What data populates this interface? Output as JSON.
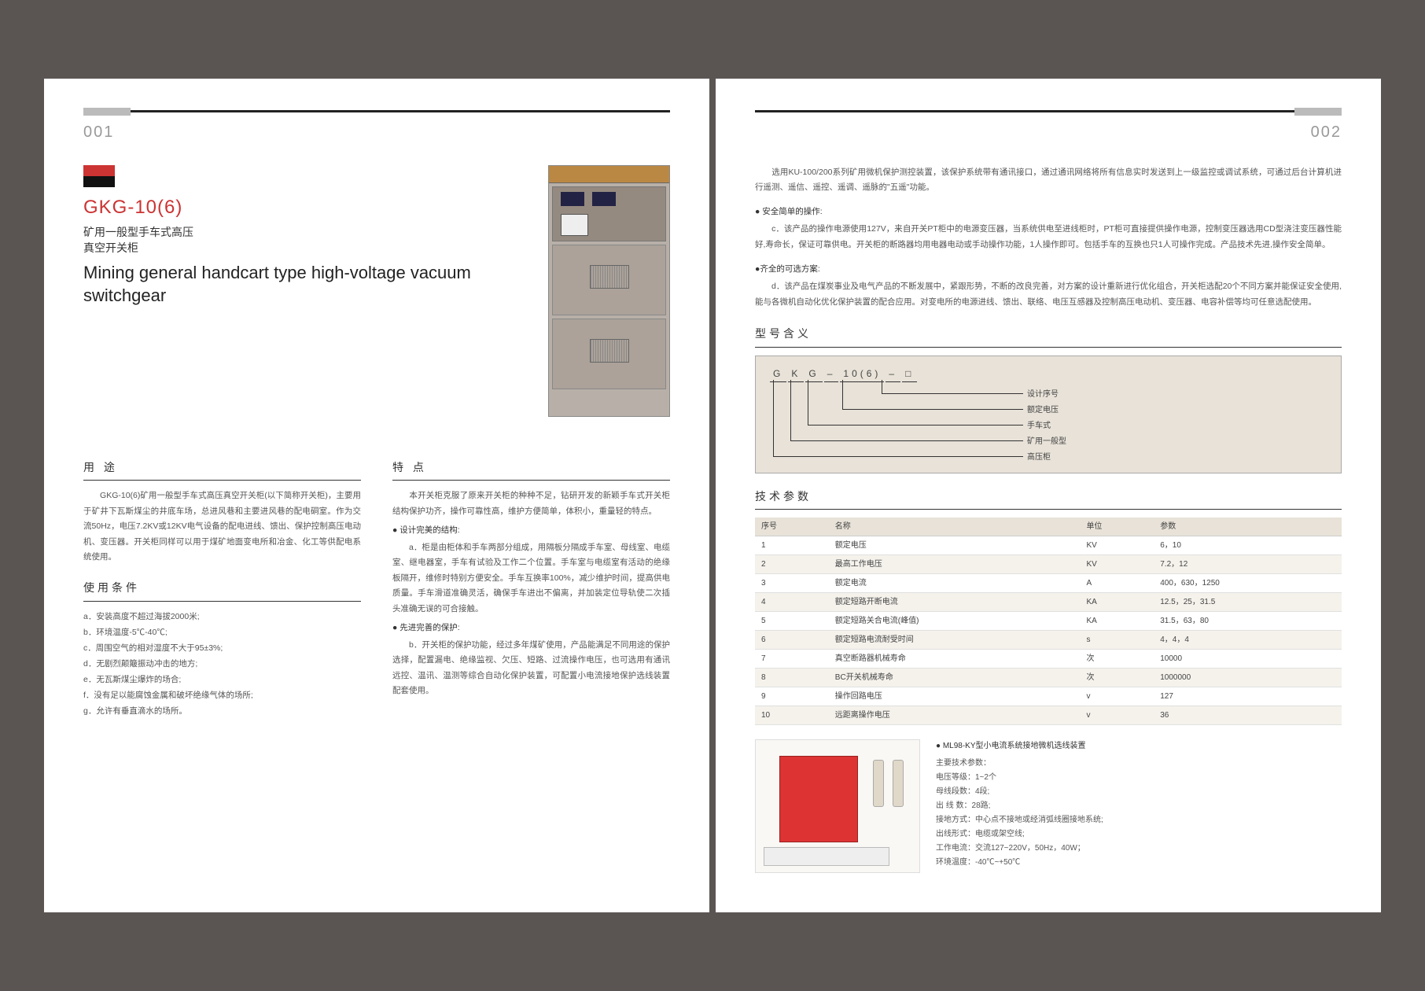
{
  "leftPage": {
    "pageNum": "001",
    "model": "GKG-10(6)",
    "modelSub": "矿用一般型手车式高压\n真空开关柜",
    "modelEn": "Mining general handcart type high-voltage vacuum switchgear",
    "usage": {
      "heading": "用 途",
      "text": "　　GKG-10(6)矿用一般型手车式高压真空开关柜(以下简称开关柜)，主要用于矿井下瓦斯煤尘的井底车场，总进风巷和主要进风巷的配电硐室。作为交流50Hz，电压7.2KV或12KV电气设备的配电进线、馈出、保护控制高压电动机、变压器。开关柜同样可以用于煤矿地面变电所和冶金、化工等供配电系统使用。"
    },
    "conditions": {
      "heading": "使用条件",
      "items": [
        "a．安装高度不超过海拔2000米;",
        "b．环境温度-5℃-40℃;",
        "c．周围空气的相对湿度不大于95±3%;",
        "d．无剧烈颠簸振动冲击的地方;",
        "e．无瓦斯煤尘爆炸的场合;",
        "f．没有足以能腐蚀金属和破坏绝缘气体的场所;",
        "g．允许有垂直滴水的场所。"
      ]
    },
    "features": {
      "heading": "特 点",
      "intro": "　　本开关柜克服了原来开关柜的种种不足，钻研开发的新颖手车式开关柜结构保护功齐，操作可靠性高，维护方便简单，体积小，重量轻的特点。",
      "b1_head": "● 设计完美的结构:",
      "b1_text": "　　a．柜是由柜体和手车两部分组成，用隔板分隔成手车室、母线室、电缆室、继电器室，手车有试验及工作二个位置。手车室与电缆室有活动的绝缘板隔开，维修时特别方便安全。手车互换率100%，减少维护时间，提高供电质量。手车滑道准确灵活，确保手车进出不偏离，并加装定位导轨使二次插头准确无误的可合接触。",
      "b2_head": "● 先进完善的保护:",
      "b2_text": "　　b．开关柜的保护功能，经过多年煤矿使用，产品能满足不同用途的保护选择，配置漏电、绝缘监视、欠压、短路、过流操作电压，也可选用有通讯远控、温讯、温测等综合自动化保护装置，可配置小电流接地保护选线装置配套使用。"
    }
  },
  "rightPage": {
    "pageNum": "002",
    "intro1": "　　选用KU-100/200系列矿用微机保护测控装置，该保护系统带有通讯接口，通过通讯网络将所有信息实时发送到上一级监控或调试系统，可通过后台计算机进行遥测、遥信、遥控、遥调、遥脉的\"五遥\"功能。",
    "s1_head": "● 安全简单的操作:",
    "s1_text": "　　c．该产品的操作电源使用127V，来自开关PT柜中的电源变压器，当系统供电至进线柜时，PT柜可直接提供操作电源，控制变压器选用CD型浇注变压器性能好,寿命长，保证可靠供电。开关柜的断路器均用电器电动或手动操作功能，1人操作即可。包括手车的互换也只1人可操作完成。产品技术先进,操作安全简单。",
    "s2_head": "●齐全的可选方案:",
    "s2_text": "　　d．该产品在煤炭事业及电气产品的不断发展中，紧跟形势，不断的改良完善，对方案的设计重新进行优化组合，开关柜选配20个不同方案并能保证安全使用,能与各微机自动化优化保护装置的配合应用。对变电所的电源进线、馈出、联络、电压互感器及控制高压电动机、变压器、电容补偿等均可任意选配使用。",
    "modelMeaning": {
      "heading": "型号含义",
      "code": [
        "G",
        "K",
        "G",
        "–",
        "10(6)",
        "–",
        "□"
      ],
      "labels": [
        "设计序号",
        "额定电压",
        "手车式",
        "矿用一般型",
        "高压柜"
      ]
    },
    "params": {
      "heading": "技术参数",
      "cols": [
        "序号",
        "名称",
        "单位",
        "参数"
      ],
      "rows": [
        [
          "1",
          "额定电压",
          "KV",
          "6，10"
        ],
        [
          "2",
          "最高工作电压",
          "KV",
          "7.2，12"
        ],
        [
          "3",
          "额定电流",
          "A",
          "400，630，1250"
        ],
        [
          "4",
          "额定短路开断电流",
          "KA",
          "12.5，25，31.5"
        ],
        [
          "5",
          "额定短路关合电流(峰值)",
          "KA",
          "31.5，63，80"
        ],
        [
          "6",
          "额定短路电流耐受时间",
          "s",
          "4，4，4"
        ],
        [
          "7",
          "真空断路器机械寿命",
          "次",
          "10000"
        ],
        [
          "8",
          "BC开关机械寿命",
          "次",
          "1000000"
        ],
        [
          "9",
          "操作回路电压",
          "v",
          "127"
        ],
        [
          "10",
          "远距离操作电压",
          "v",
          "36"
        ]
      ]
    },
    "breaker": {
      "title": "● ML98-KY型小电流系统接地微机选线装置",
      "sub": "主要技术参数：",
      "lines": [
        "电压等级：1~2个",
        "母线段数：4段;",
        "出 线 数：28路;",
        "接地方式：中心点不接地或经消弧线圈接地系统;",
        "出线形式：电缆或架空线;",
        "工作电流：交流127~220V，50Hz，40W；",
        "环境温度：-40℃~+50℃"
      ]
    }
  },
  "colors": {
    "bg": "#5a5553",
    "accent": "#c33",
    "panel": "#e8e2d8"
  }
}
